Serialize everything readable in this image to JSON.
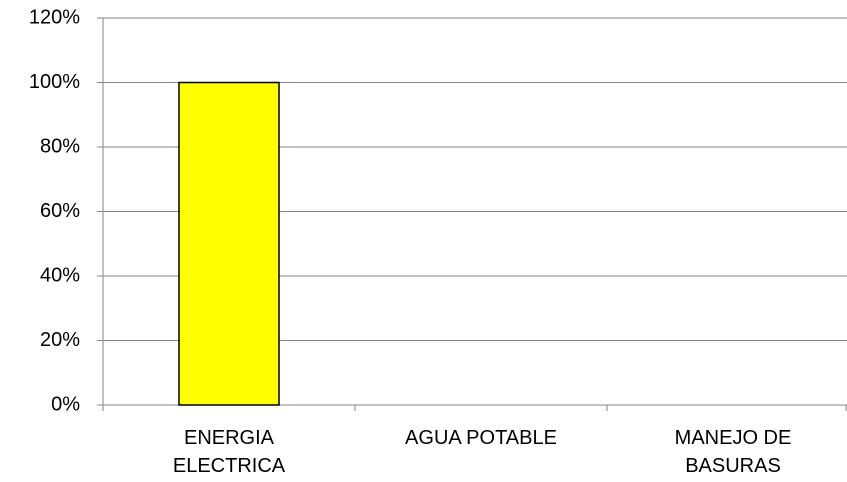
{
  "chart_data": {
    "type": "bar",
    "categories": [
      "ENERGIA ELECTRICA",
      "AGUA POTABLE",
      "MANEJO DE BASURAS"
    ],
    "values": [
      100,
      0,
      0
    ],
    "color": "#ffff00",
    "ylim": [
      0,
      120
    ],
    "yticks": [
      {
        "value": 0,
        "label": "0%"
      },
      {
        "value": 20,
        "label": "20%"
      },
      {
        "value": 40,
        "label": "40%"
      },
      {
        "value": 60,
        "label": "60%"
      },
      {
        "value": 80,
        "label": "80%"
      },
      {
        "value": 100,
        "label": "100%"
      },
      {
        "value": 120,
        "label": "120%"
      }
    ],
    "grid": true
  }
}
